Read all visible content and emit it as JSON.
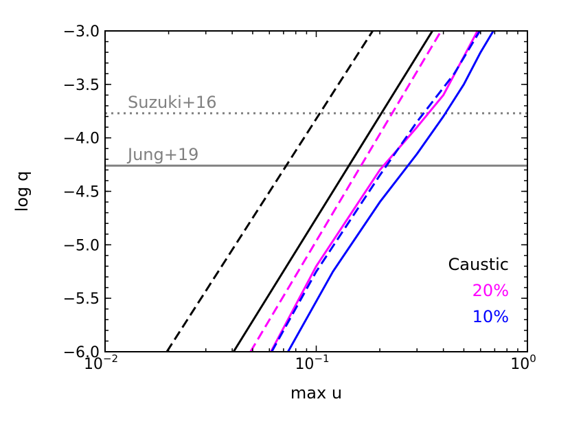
{
  "chart_data": {
    "type": "line",
    "title": "",
    "xlabel": "max u",
    "ylabel": "log q",
    "xscale": "log",
    "xlim": [
      0.01,
      1.0
    ],
    "ylim": [
      -6.0,
      -3.0
    ],
    "grid": false,
    "x_ticks": [
      {
        "value": 0.01,
        "base": "10",
        "exp": "−2"
      },
      {
        "value": 0.1,
        "base": "10",
        "exp": "−1"
      },
      {
        "value": 1.0,
        "base": "10",
        "exp": "0"
      }
    ],
    "y_ticks": [
      {
        "value": -3.0,
        "label": "−3.0"
      },
      {
        "value": -3.5,
        "label": "−3.5"
      },
      {
        "value": -4.0,
        "label": "−4.0"
      },
      {
        "value": -4.5,
        "label": "−4.5"
      },
      {
        "value": -5.0,
        "label": "−5.0"
      },
      {
        "value": -5.5,
        "label": "−5.5"
      },
      {
        "value": -6.0,
        "label": "−6.0"
      }
    ],
    "series": [
      {
        "color": "#000000",
        "dash": "dashed",
        "x": [
          0.0196,
          0.185
        ],
        "y": [
          -6.0,
          -3.0
        ]
      },
      {
        "color": "#000000",
        "dash": "solid",
        "x": [
          0.0406,
          0.355
        ],
        "y": [
          -6.0,
          -3.0
        ]
      },
      {
        "color": "#ff00ff",
        "dash": "dashed",
        "x": [
          0.0488,
          0.39
        ],
        "y": [
          -6.0,
          -3.0
        ]
      },
      {
        "color": "#ff00ff",
        "dash": "solid",
        "x": [
          0.061,
          0.1,
          0.2,
          0.3,
          0.4,
          0.58
        ],
        "y": [
          -6.0,
          -5.2,
          -4.3,
          -3.9,
          -3.6,
          -3.0
        ]
      },
      {
        "color": "#0000ff",
        "dash": "dashed",
        "x": [
          0.0615,
          0.1,
          0.2,
          0.3,
          0.45,
          0.595
        ],
        "y": [
          -6.0,
          -5.25,
          -4.35,
          -3.85,
          -3.4,
          -3.0
        ]
      },
      {
        "color": "#0000ff",
        "dash": "solid",
        "x": [
          0.0735,
          0.12,
          0.2,
          0.3,
          0.4,
          0.5,
          0.6,
          0.69
        ],
        "y": [
          -6.0,
          -5.25,
          -4.6,
          -4.15,
          -3.8,
          -3.5,
          -3.2,
          -3.0
        ]
      }
    ],
    "hlines": [
      {
        "y": -3.77,
        "color": "#808080",
        "dash": "dotted",
        "label": "Suzuki+16"
      },
      {
        "y": -4.26,
        "color": "#808080",
        "dash": "solid",
        "label": "Jung+19"
      }
    ],
    "legend": {
      "placement": "lower-right",
      "entries": [
        {
          "label": "Caustic",
          "color": "#000000"
        },
        {
          "label": "20%",
          "color": "#ff00ff"
        },
        {
          "label": "10%",
          "color": "#0000ff"
        }
      ]
    }
  }
}
